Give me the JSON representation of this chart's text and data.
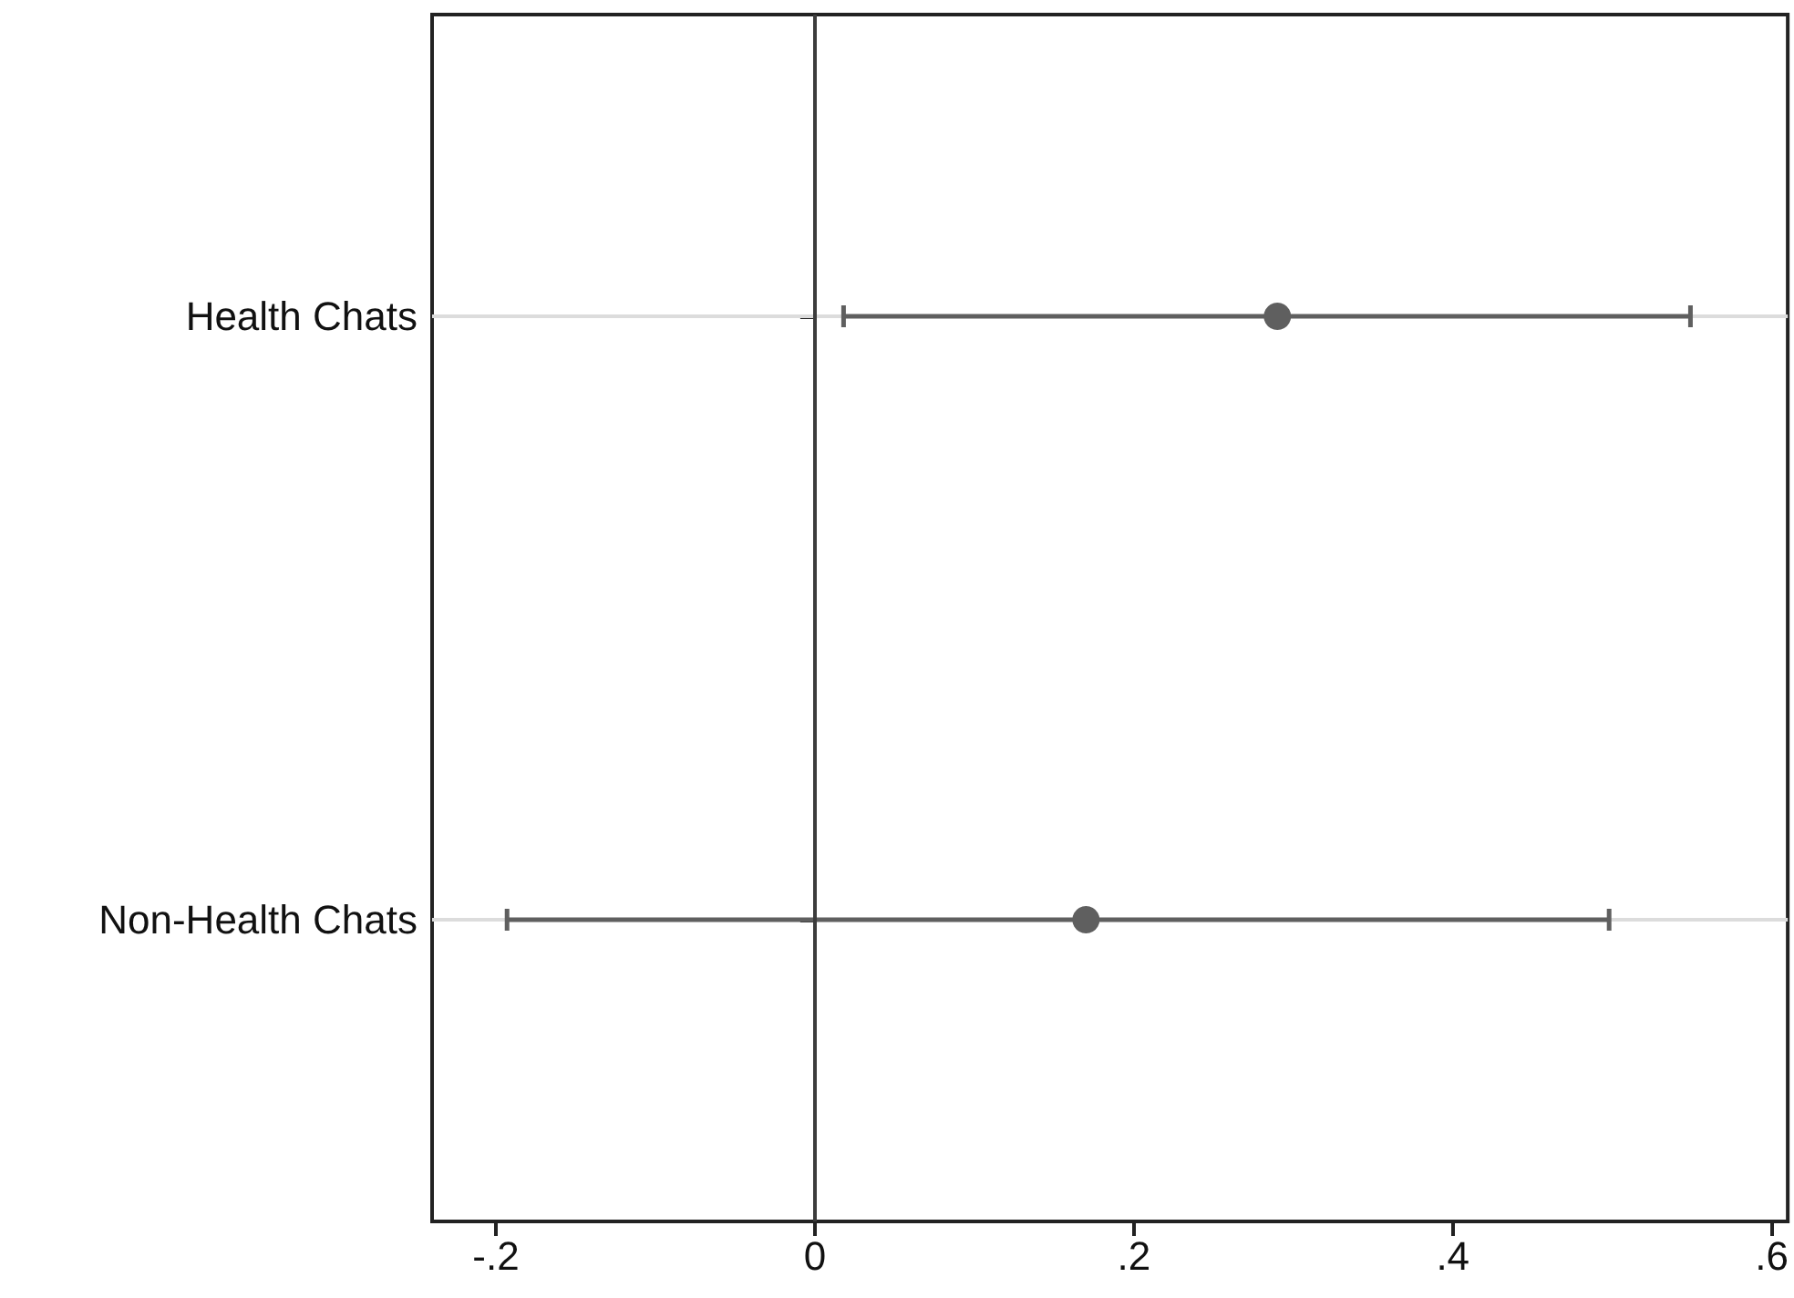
{
  "chart_data": {
    "type": "scatter",
    "orientation": "horizontal",
    "categories": [
      "Health Chats",
      "Non-Health Chats"
    ],
    "series": [
      {
        "color": "#5f5f5f",
        "values": [
          0.29,
          0.17
        ],
        "errors": [
          [
            0.018,
            0.549
          ],
          [
            -0.193,
            0.498
          ]
        ]
      }
    ],
    "xlim": [
      -0.24,
      0.61
    ],
    "xticks": [
      {
        "value": -0.2,
        "label": "-.2"
      },
      0,
      {
        "value": 0.2,
        "label": ".2"
      },
      {
        "value": 0.4,
        "label": ".4"
      },
      {
        "value": 0.6,
        "label": ".6"
      }
    ],
    "ref_lines": [
      {
        "axis": "x",
        "value": 0,
        "color": "#3c3c3c"
      }
    ],
    "grid": "y",
    "marker": "circle",
    "legend": false
  }
}
